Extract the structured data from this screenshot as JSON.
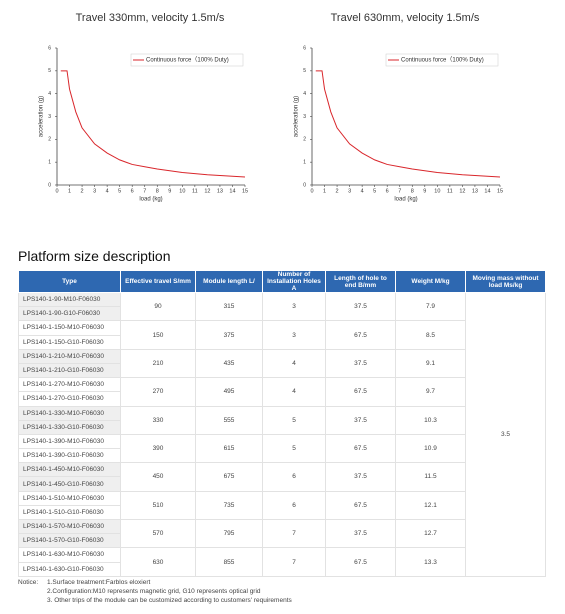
{
  "chart_data": [
    {
      "type": "line",
      "title": "Travel 330mm, velocity 1.5m/s",
      "x_label": "load (kg)",
      "y_label": "acceleration (g)",
      "legend": "upper right",
      "series": [
        {
          "name": "Continuous force（100% Duty)",
          "color": "#d9262b",
          "x": [
            0.3,
            0.8,
            1,
            1.5,
            2,
            3,
            4,
            5,
            6,
            7,
            8,
            10,
            12,
            15
          ],
          "values": [
            5,
            5,
            4.2,
            3.2,
            2.5,
            1.8,
            1.4,
            1.1,
            0.9,
            0.8,
            0.7,
            0.55,
            0.45,
            0.35
          ]
        }
      ],
      "xlim": [
        0,
        15
      ],
      "xticks": [
        0,
        1,
        2,
        3,
        4,
        5,
        6,
        7,
        8,
        9,
        10,
        11,
        12,
        13,
        14,
        15
      ],
      "ylim": [
        0,
        6
      ],
      "yticks": [
        0,
        1,
        2,
        3,
        4,
        5,
        6
      ]
    },
    {
      "type": "line",
      "title": "Travel 630mm, velocity 1.5m/s",
      "x_label": "load (kg)",
      "y_label": "acceleration (g)",
      "legend": "upper right",
      "series": [
        {
          "name": "Continuous force（100% Duty)",
          "color": "#d9262b",
          "x": [
            0.3,
            0.8,
            1,
            1.5,
            2,
            3,
            4,
            5,
            6,
            7,
            8,
            10,
            12,
            15
          ],
          "values": [
            5,
            5,
            4.2,
            3.2,
            2.5,
            1.8,
            1.4,
            1.1,
            0.9,
            0.8,
            0.7,
            0.55,
            0.45,
            0.35
          ]
        }
      ],
      "xlim": [
        0,
        15
      ],
      "xticks": [
        0,
        1,
        2,
        3,
        4,
        5,
        6,
        7,
        8,
        9,
        10,
        11,
        12,
        13,
        14,
        15
      ],
      "ylim": [
        0,
        6
      ],
      "yticks": [
        0,
        1,
        2,
        3,
        4,
        5,
        6
      ]
    }
  ],
  "section_title": "Platform size description",
  "table": {
    "header": [
      "Type",
      "Effective travel S/mm",
      "Module length L/",
      "Number of Installation Holes A",
      "Length of hole to end B/mm",
      "Weight M/kg",
      "Moving mass without load Ms/kg"
    ],
    "groups": [
      {
        "types": [
          "LPS140-1-90-M10-F06030",
          "LPS140-1-90-G10-F06030"
        ],
        "cells": [
          "90",
          "315",
          "3",
          "37.5",
          "7.9"
        ]
      },
      {
        "types": [
          "LPS140-1-150-M10-F06030",
          "LPS140-1-150-G10-F06030"
        ],
        "cells": [
          "150",
          "375",
          "3",
          "67.5",
          "8.5"
        ]
      },
      {
        "types": [
          "LPS140-1-210-M10-F06030",
          "LPS140-1-210-G10-F06030"
        ],
        "cells": [
          "210",
          "435",
          "4",
          "37.5",
          "9.1"
        ]
      },
      {
        "types": [
          "LPS140-1-270-M10-F06030",
          "LPS140-1-270-G10-F06030"
        ],
        "cells": [
          "270",
          "495",
          "4",
          "67.5",
          "9.7"
        ]
      },
      {
        "types": [
          "LPS140-1-330-M10-F06030",
          "LPS140-1-330-G10-F06030"
        ],
        "cells": [
          "330",
          "555",
          "5",
          "37.5",
          "10.3"
        ]
      },
      {
        "types": [
          "LPS140-1-390-M10-F06030",
          "LPS140-1-390-G10-F06030"
        ],
        "cells": [
          "390",
          "615",
          "5",
          "67.5",
          "10.9"
        ]
      },
      {
        "types": [
          "LPS140-1-450-M10-F06030",
          "LPS140-1-450-G10-F06030"
        ],
        "cells": [
          "450",
          "675",
          "6",
          "37.5",
          "11.5"
        ]
      },
      {
        "types": [
          "LPS140-1-510-M10-F06030",
          "LPS140-1-510-G10-F06030"
        ],
        "cells": [
          "510",
          "735",
          "6",
          "67.5",
          "12.1"
        ]
      },
      {
        "types": [
          "LPS140-1-570-M10-F06030",
          "LPS140-1-570-G10-F06030"
        ],
        "cells": [
          "570",
          "795",
          "7",
          "37.5",
          "12.7"
        ]
      },
      {
        "types": [
          "LPS140-1-630-M10-F06030",
          "LPS140-1-630-G10-F06030"
        ],
        "cells": [
          "630",
          "855",
          "7",
          "67.5",
          "13.3"
        ]
      }
    ],
    "moving_mass": "3.5"
  },
  "notice": {
    "label": "Notice:",
    "items": [
      "1.Surface treatment:Farblos eloxiert",
      "2.Configuration:M10 represents magnetic grid, G10 represents optical grid",
      "3. Other trips of the module can be customized according to customers' requirements"
    ]
  }
}
